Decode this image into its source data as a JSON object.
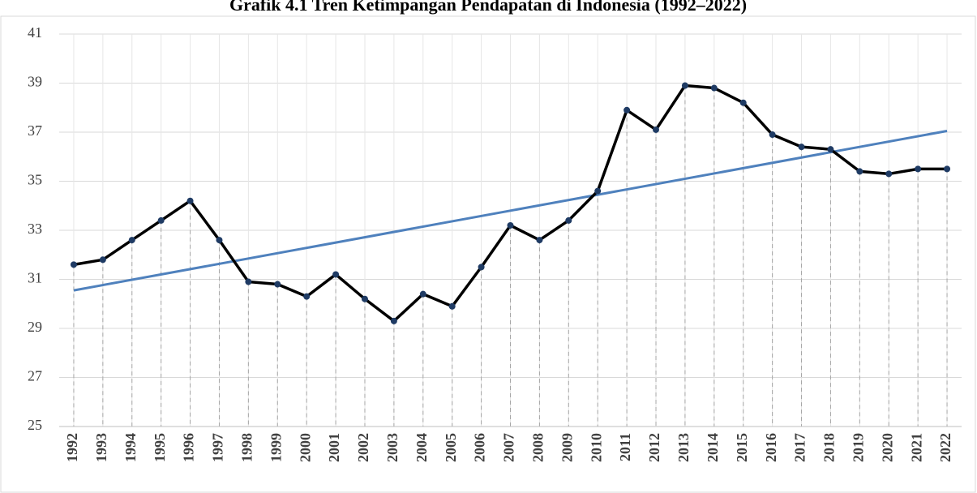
{
  "chart_data": {
    "type": "line",
    "title": "Grafik 4.1 Tren Ketimpangan Pendapatan di Indonesia (1992–2022)",
    "categories": [
      "1992",
      "1993",
      "1994",
      "1995",
      "1996",
      "1997",
      "1998",
      "1999",
      "2000",
      "2001",
      "2002",
      "2003",
      "2004",
      "2005",
      "2006",
      "2007",
      "2008",
      "2009",
      "2010",
      "2011",
      "2012",
      "2013",
      "2014",
      "2015",
      "2016",
      "2017",
      "2018",
      "2019",
      "2020",
      "2021",
      "2022"
    ],
    "values": [
      31.6,
      31.8,
      32.6,
      33.4,
      34.2,
      32.6,
      30.9,
      30.8,
      30.3,
      31.2,
      30.2,
      29.3,
      30.4,
      29.9,
      31.5,
      33.2,
      32.6,
      33.4,
      34.6,
      37.9,
      37.1,
      38.9,
      38.8,
      38.2,
      36.9,
      36.4,
      36.3,
      35.4,
      35.3,
      35.5,
      35.5
    ],
    "color": "#000000",
    "marker_color": "#1f3b64",
    "trend": {
      "color": "#4f81bd",
      "start": 30.55,
      "end": 37.05
    },
    "ylim": [
      25,
      41
    ],
    "yticks": [
      25,
      27,
      29,
      31,
      33,
      35,
      37,
      39,
      41
    ],
    "grid": true,
    "drop_lines": true
  }
}
